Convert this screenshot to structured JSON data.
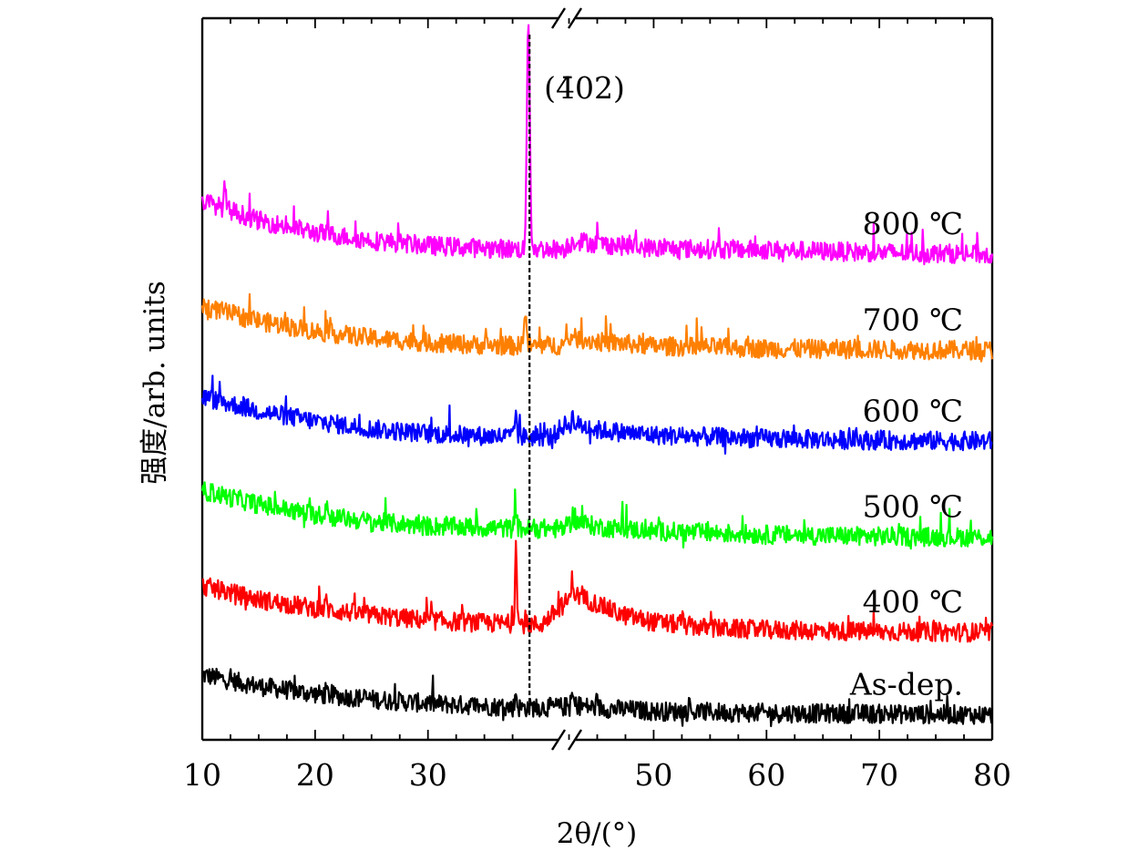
{
  "chart_data": {
    "type": "line",
    "xlabel": "2θ/(°)",
    "ylabel": "强度/arb. units",
    "xlim": [
      10,
      80
    ],
    "x_axis_break": [
      38.5,
      41.5
    ],
    "x_ticks": [
      10,
      20,
      30,
      50,
      60,
      70,
      80
    ],
    "x_tick_labels": [
      "10",
      "20",
      "30",
      "50",
      "60",
      "70",
      "80"
    ],
    "y_ticks": "none",
    "grid": false,
    "reference_line": {
      "x": 39.0,
      "style": "dashed",
      "label": "(4̄02)"
    },
    "series": [
      {
        "name": "As-dep.",
        "color": "#000000",
        "baseline": [
          [
            10,
            0.75
          ],
          [
            15,
            0.62
          ],
          [
            20,
            0.53
          ],
          [
            25,
            0.47
          ],
          [
            30,
            0.42
          ],
          [
            35,
            0.39
          ],
          [
            38,
            0.37
          ],
          [
            42,
            0.38
          ],
          [
            43,
            0.4
          ],
          [
            45,
            0.37
          ],
          [
            50,
            0.33
          ],
          [
            60,
            0.31
          ],
          [
            70,
            0.3
          ],
          [
            80,
            0.29
          ]
        ],
        "peaks": [
          [
            37.8,
            0.55
          ],
          [
            42.8,
            0.52
          ],
          [
            21,
            0.57
          ]
        ]
      },
      {
        "name": "400 ℃",
        "color": "#ff0000",
        "baseline": [
          [
            10,
            1.78
          ],
          [
            15,
            1.62
          ],
          [
            20,
            1.52
          ],
          [
            25,
            1.44
          ],
          [
            30,
            1.38
          ],
          [
            35,
            1.35
          ],
          [
            38,
            1.34
          ],
          [
            40,
            1.33
          ],
          [
            41.5,
            1.5
          ],
          [
            42.5,
            1.62
          ],
          [
            43,
            1.68
          ],
          [
            45,
            1.57
          ],
          [
            47,
            1.45
          ],
          [
            50,
            1.36
          ],
          [
            55,
            1.29
          ],
          [
            60,
            1.27
          ],
          [
            70,
            1.25
          ],
          [
            80,
            1.24
          ]
        ],
        "peaks": [
          [
            37.8,
            2.28
          ],
          [
            42.8,
            1.88
          ],
          [
            21,
            1.6
          ],
          [
            52.5,
            1.42
          ]
        ]
      },
      {
        "name": "500 ℃",
        "color": "#00ff00",
        "baseline": [
          [
            10,
            2.88
          ],
          [
            15,
            2.72
          ],
          [
            20,
            2.6
          ],
          [
            25,
            2.52
          ],
          [
            30,
            2.47
          ],
          [
            35,
            2.45
          ],
          [
            38,
            2.44
          ],
          [
            42,
            2.44
          ],
          [
            43,
            2.53
          ],
          [
            45,
            2.46
          ],
          [
            50,
            2.41
          ],
          [
            60,
            2.37
          ],
          [
            70,
            2.35
          ],
          [
            80,
            2.34
          ]
        ],
        "peaks": [
          [
            37.8,
            2.63
          ],
          [
            42.8,
            2.6
          ],
          [
            21,
            2.75
          ]
        ]
      },
      {
        "name": "600 ℃",
        "color": "#0000ff",
        "baseline": [
          [
            10,
            3.96
          ],
          [
            15,
            3.8
          ],
          [
            20,
            3.68
          ],
          [
            25,
            3.59
          ],
          [
            30,
            3.54
          ],
          [
            35,
            3.51
          ],
          [
            38,
            3.5
          ],
          [
            41,
            3.5
          ],
          [
            42,
            3.63
          ],
          [
            43,
            3.65
          ],
          [
            45,
            3.58
          ],
          [
            50,
            3.52
          ],
          [
            60,
            3.48
          ],
          [
            70,
            3.46
          ],
          [
            80,
            3.45
          ]
        ],
        "peaks": [
          [
            37.8,
            3.8
          ],
          [
            42.8,
            3.73
          ],
          [
            21,
            3.68
          ]
        ]
      },
      {
        "name": "700 ℃",
        "color": "#ff8000",
        "baseline": [
          [
            10,
            5.01
          ],
          [
            15,
            4.84
          ],
          [
            20,
            4.72
          ],
          [
            25,
            4.64
          ],
          [
            30,
            4.59
          ],
          [
            35,
            4.56
          ],
          [
            38,
            4.55
          ],
          [
            42,
            4.56
          ],
          [
            43,
            4.64
          ],
          [
            45,
            4.6
          ],
          [
            50,
            4.55
          ],
          [
            60,
            4.52
          ],
          [
            70,
            4.51
          ],
          [
            80,
            4.5
          ]
        ],
        "peaks": [
          [
            38.6,
            4.92
          ],
          [
            42.8,
            4.72
          ]
        ]
      },
      {
        "name": "800 ℃",
        "color": "#ff00ff",
        "baseline": [
          [
            10,
            6.23
          ],
          [
            15,
            6.0
          ],
          [
            20,
            5.86
          ],
          [
            25,
            5.77
          ],
          [
            30,
            5.71
          ],
          [
            35,
            5.68
          ],
          [
            38,
            5.67
          ],
          [
            42,
            5.67
          ],
          [
            43,
            5.77
          ],
          [
            45,
            5.73
          ],
          [
            50,
            5.68
          ],
          [
            60,
            5.66
          ],
          [
            70,
            5.63
          ],
          [
            80,
            5.61
          ]
        ],
        "peaks": [
          [
            38.9,
            8.35
          ],
          [
            12,
            6.38
          ]
        ]
      }
    ]
  }
}
